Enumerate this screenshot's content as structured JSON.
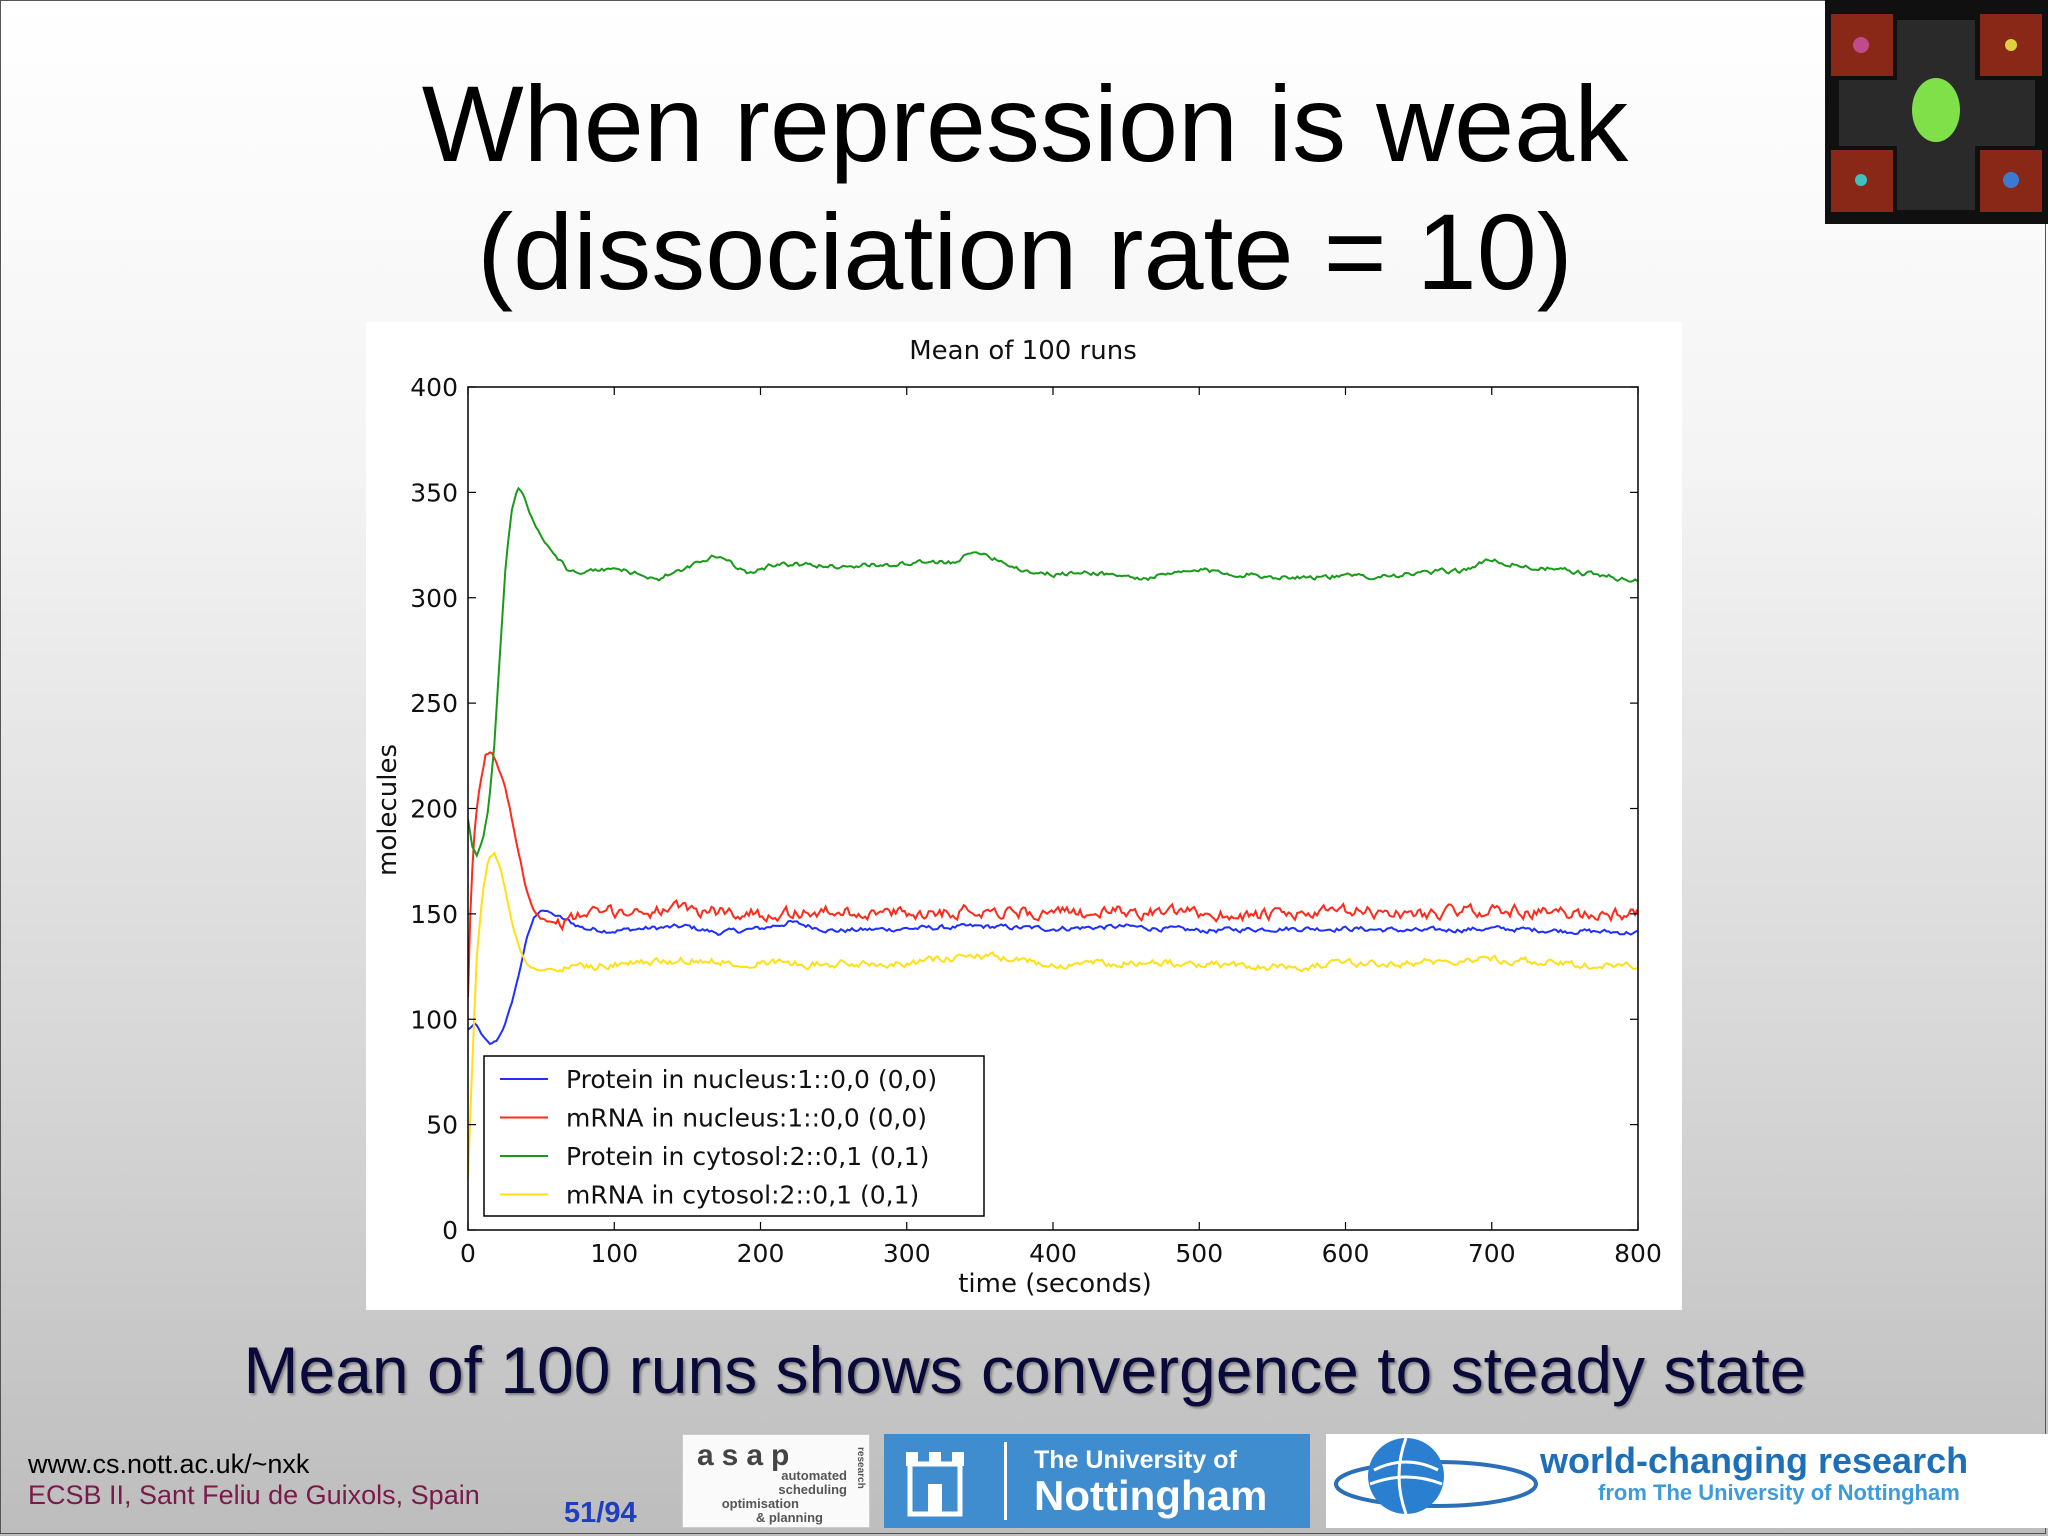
{
  "slide": {
    "title_line1": "When repression is weak",
    "title_line2": "(dissociation rate = 10)",
    "caption": "Mean of 100 runs shows convergence to steady state",
    "footer_url": "www.cs.nott.ac.uk/~nxk",
    "footer_conference": "ECSB II, Sant Feliu de Guixols, Spain",
    "page_number": "51/94"
  },
  "logos": {
    "asap_name": "asap",
    "asap_line1": "automated",
    "asap_line2": "scheduling",
    "asap_line3": "optimisation",
    "asap_line4": "& planning",
    "asap_side": "research",
    "nottingham_line1": "The University of",
    "nottingham_line2": "Nottingham",
    "world_line1": "world-changing research",
    "world_line2": "from The University of Nottingham"
  },
  "colors": {
    "blue": "#1f2fff",
    "red": "#ff2a1a",
    "green": "#1a9a1a",
    "yellow": "#ffe014"
  },
  "chart_data": {
    "type": "line",
    "title": "Mean of 100 runs",
    "xlabel": "time (seconds)",
    "ylabel": "molecules",
    "xlim": [
      0,
      800
    ],
    "ylim": [
      0,
      400
    ],
    "xticks": [
      0,
      100,
      200,
      300,
      400,
      500,
      600,
      700,
      800
    ],
    "yticks": [
      0,
      50,
      100,
      150,
      200,
      250,
      300,
      350,
      400
    ],
    "legend_position": "lower-left",
    "series": [
      {
        "name": "Protein in nucleus:1::0,0 (0,0)",
        "color": "#1f2fff",
        "noise": 2,
        "x": [
          0,
          5,
          10,
          15,
          20,
          25,
          30,
          35,
          40,
          45,
          50,
          55,
          60,
          70,
          80,
          100,
          120,
          150,
          170,
          200,
          220,
          250,
          300,
          350,
          400,
          450,
          500,
          550,
          600,
          650,
          700,
          750,
          800
        ],
        "y": [
          95,
          98,
          92,
          88,
          90,
          97,
          108,
          122,
          138,
          148,
          152,
          151,
          149,
          146,
          143,
          142,
          143,
          144,
          141,
          143,
          146,
          142,
          143,
          144,
          143,
          144,
          142,
          143,
          143,
          142,
          143,
          142,
          141
        ]
      },
      {
        "name": "mRNA in nucleus:1::0,0 (0,0)",
        "color": "#ff2a1a",
        "noise": 5,
        "x": [
          0,
          2,
          5,
          8,
          12,
          16,
          20,
          25,
          30,
          35,
          40,
          45,
          50,
          60,
          70,
          80,
          100,
          150,
          200,
          250,
          300,
          350,
          400,
          450,
          500,
          550,
          600,
          650,
          700,
          750,
          800
        ],
        "y": [
          110,
          160,
          195,
          210,
          225,
          228,
          220,
          212,
          195,
          178,
          162,
          152,
          148,
          145,
          147,
          150,
          151,
          152,
          150,
          151,
          150,
          152,
          150,
          151,
          150,
          149,
          151,
          150,
          152,
          150,
          150
        ]
      },
      {
        "name": "Protein in cytosol:2::0,1 (0,1)",
        "color": "#1a9a1a",
        "noise": 2,
        "x": [
          0,
          3,
          6,
          10,
          14,
          18,
          22,
          26,
          30,
          34,
          38,
          42,
          46,
          52,
          60,
          70,
          80,
          100,
          130,
          150,
          170,
          190,
          210,
          250,
          300,
          330,
          350,
          380,
          400,
          430,
          460,
          500,
          550,
          600,
          640,
          680,
          700,
          720,
          760,
          800
        ],
        "y": [
          195,
          182,
          178,
          185,
          200,
          230,
          275,
          318,
          342,
          352,
          349,
          340,
          334,
          327,
          320,
          312,
          312,
          314,
          309,
          314,
          320,
          312,
          316,
          315,
          316,
          317,
          322,
          313,
          311,
          312,
          309,
          313,
          310,
          310,
          311,
          313,
          318,
          315,
          312,
          308
        ]
      },
      {
        "name": "mRNA in cytosol:2::0,1 (0,1)",
        "color": "#ffe014",
        "noise": 3,
        "x": [
          0,
          3,
          6,
          10,
          14,
          18,
          22,
          26,
          30,
          35,
          40,
          45,
          50,
          55,
          60,
          70,
          80,
          100,
          150,
          200,
          250,
          300,
          350,
          400,
          450,
          500,
          550,
          600,
          650,
          700,
          750,
          800
        ],
        "y": [
          25,
          80,
          130,
          160,
          176,
          179,
          172,
          160,
          146,
          134,
          126,
          124,
          123,
          124,
          123,
          125,
          125,
          126,
          128,
          127,
          126,
          127,
          130,
          126,
          127,
          126,
          125,
          126,
          127,
          129,
          126,
          125
        ]
      }
    ]
  }
}
